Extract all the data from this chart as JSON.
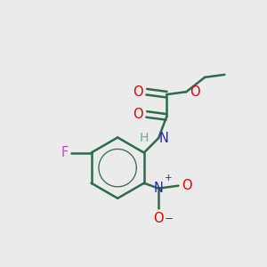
{
  "bg": "#ebebeb",
  "bc": "#2d6b4a",
  "lw": 1.8,
  "dbo": 0.011,
  "figsize": [
    3.0,
    3.0
  ],
  "dpi": 100,
  "colors": {
    "O": "#dd0000",
    "N": "#2222cc",
    "F": "#cc44cc",
    "H": "#6aabaf",
    "bond": "#2d6b4a"
  }
}
